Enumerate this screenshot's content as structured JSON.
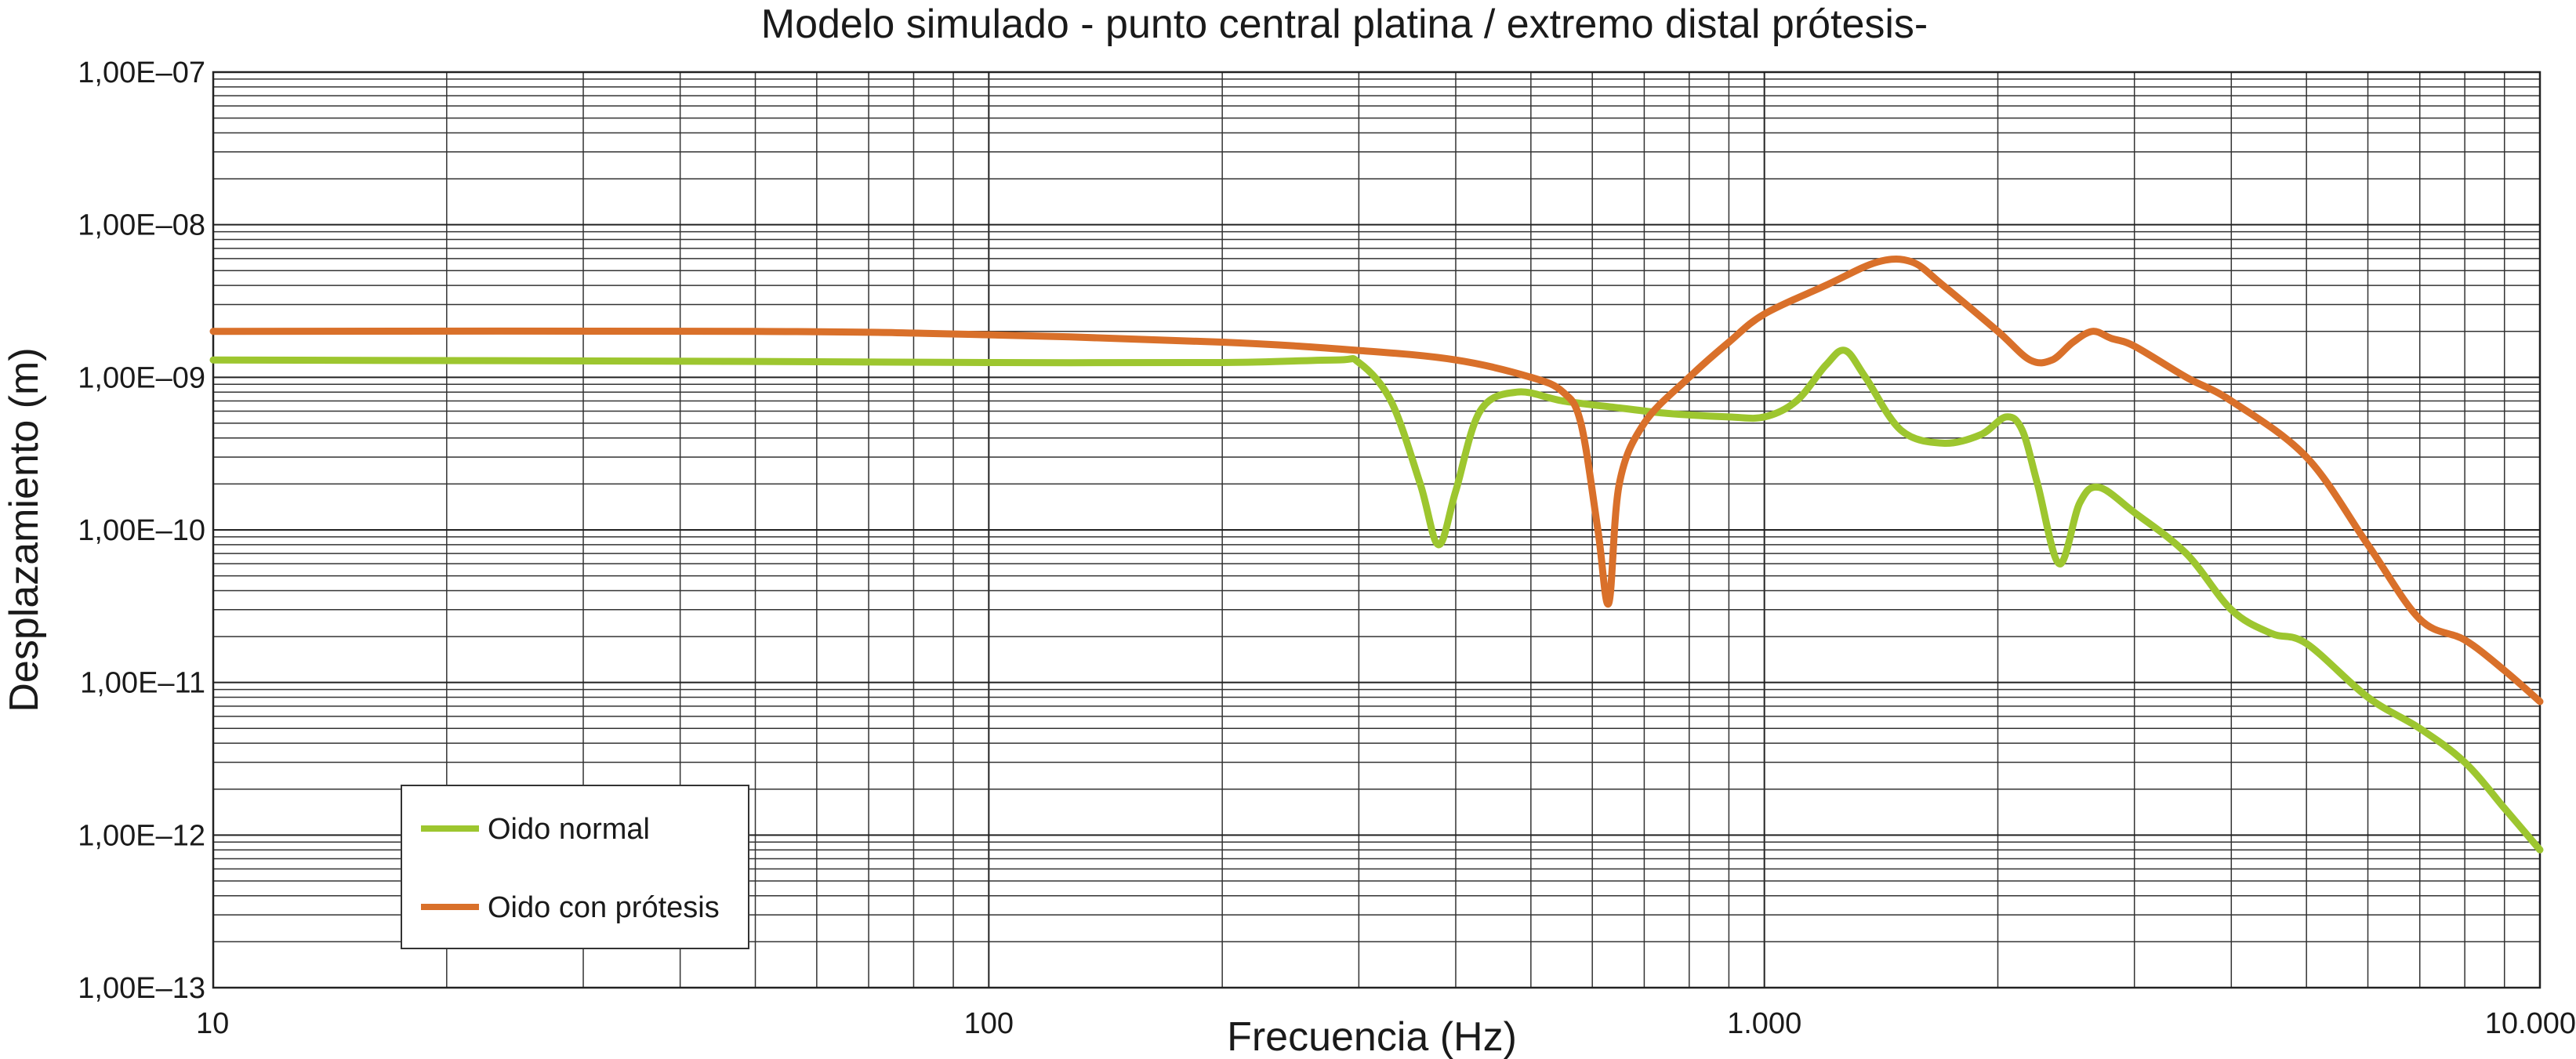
{
  "chart_data": {
    "type": "line",
    "title": "Modelo simulado - punto central platina / extremo distal prótesis-",
    "xlabel": "Frecuencia (Hz)",
    "ylabel": "Desplazamiento (m)",
    "x_scale": "log",
    "y_scale": "log",
    "xlim": [
      10,
      10000
    ],
    "ylim": [
      1e-13,
      1e-07
    ],
    "x_ticks": [
      {
        "value": 10,
        "label": "10"
      },
      {
        "value": 100,
        "label": "100"
      },
      {
        "value": 1000,
        "label": "1.000"
      },
      {
        "value": 10000,
        "label": "10.000"
      }
    ],
    "y_ticks": [
      {
        "value": 1e-07,
        "label": "1,00E–07"
      },
      {
        "value": 1e-08,
        "label": "1,00E–08"
      },
      {
        "value": 1e-09,
        "label": "1,00E–09"
      },
      {
        "value": 1e-10,
        "label": "1,00E–10"
      },
      {
        "value": 1e-11,
        "label": "1,00E–11"
      },
      {
        "value": 1e-12,
        "label": "1,00E–12"
      },
      {
        "value": 1e-13,
        "label": "1,00E–13"
      }
    ],
    "grid": true,
    "legend_position": "bottom-left",
    "series": [
      {
        "name": "Oido normal",
        "color": "#9dc62f",
        "points": [
          [
            10,
            1.3e-09
          ],
          [
            50,
            1.27e-09
          ],
          [
            100,
            1.25e-09
          ],
          [
            200,
            1.25e-09
          ],
          [
            280,
            1.3e-09
          ],
          [
            300,
            1.25e-09
          ],
          [
            330,
            7e-10
          ],
          [
            360,
            2e-10
          ],
          [
            380,
            8e-11
          ],
          [
            400,
            1.8e-10
          ],
          [
            430,
            6e-10
          ],
          [
            480,
            8e-10
          ],
          [
            550,
            7e-10
          ],
          [
            650,
            6.3e-10
          ],
          [
            750,
            5.8e-10
          ],
          [
            900,
            5.5e-10
          ],
          [
            1000,
            5.5e-10
          ],
          [
            1100,
            7e-10
          ],
          [
            1200,
            1.2e-09
          ],
          [
            1270,
            1.5e-09
          ],
          [
            1350,
            1e-09
          ],
          [
            1500,
            4.5e-10
          ],
          [
            1700,
            3.7e-10
          ],
          [
            1900,
            4.2e-10
          ],
          [
            2050,
            5.5e-10
          ],
          [
            2150,
            4.5e-10
          ],
          [
            2250,
            2e-10
          ],
          [
            2400,
            6e-11
          ],
          [
            2550,
            1.5e-10
          ],
          [
            2700,
            1.9e-10
          ],
          [
            3000,
            1.3e-10
          ],
          [
            3500,
            7e-11
          ],
          [
            4000,
            3e-11
          ],
          [
            4500,
            2.1e-11
          ],
          [
            5000,
            1.8e-11
          ],
          [
            6000,
            8e-12
          ],
          [
            7000,
            5e-12
          ],
          [
            8000,
            3e-12
          ],
          [
            9000,
            1.5e-12
          ],
          [
            10000,
            8e-13
          ]
        ]
      },
      {
        "name": "Oido con prótesis",
        "color": "#d9702a",
        "points": [
          [
            10,
            2e-09
          ],
          [
            50,
            2e-09
          ],
          [
            100,
            1.9e-09
          ],
          [
            200,
            1.7e-09
          ],
          [
            300,
            1.5e-09
          ],
          [
            400,
            1.3e-09
          ],
          [
            500,
            1e-09
          ],
          [
            550,
            8e-10
          ],
          [
            580,
            5e-10
          ],
          [
            610,
            1e-10
          ],
          [
            630,
            3.3e-11
          ],
          [
            650,
            2e-10
          ],
          [
            700,
            5e-10
          ],
          [
            800,
            1e-09
          ],
          [
            900,
            1.7e-09
          ],
          [
            1000,
            2.6e-09
          ],
          [
            1200,
            4e-09
          ],
          [
            1400,
            5.7e-09
          ],
          [
            1550,
            5.7e-09
          ],
          [
            1700,
            4e-09
          ],
          [
            2000,
            2e-09
          ],
          [
            2200,
            1.3e-09
          ],
          [
            2350,
            1.3e-09
          ],
          [
            2500,
            1.7e-09
          ],
          [
            2650,
            2e-09
          ],
          [
            2800,
            1.8e-09
          ],
          [
            3000,
            1.6e-09
          ],
          [
            3500,
            1e-09
          ],
          [
            4000,
            7e-10
          ],
          [
            5000,
            3e-10
          ],
          [
            6000,
            8e-11
          ],
          [
            7000,
            2.6e-11
          ],
          [
            8000,
            1.9e-11
          ],
          [
            9000,
            1.2e-11
          ],
          [
            10000,
            7.5e-12
          ]
        ]
      }
    ]
  }
}
